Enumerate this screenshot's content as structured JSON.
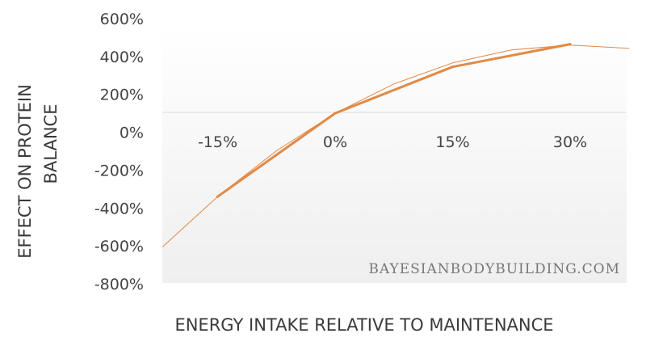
{
  "chart_data": {
    "type": "line",
    "title": "",
    "xlabel": "ENERGY INTAKE RELATIVE TO MAINTENANCE",
    "ylabel_lines": [
      "EFFECT ON PROTEIN",
      "BALANCE"
    ],
    "categories": [
      "-15%",
      "0%",
      "15%",
      "30%"
    ],
    "x": [
      -15,
      0,
      15,
      30
    ],
    "ylim": [
      -800,
      600
    ],
    "yticks": [
      600,
      400,
      200,
      0,
      -200,
      -400,
      -600,
      -800
    ],
    "ytick_labels": [
      "600%",
      "400%",
      "200%",
      "0%",
      "-200%",
      "-400%",
      "-600%",
      "-800%"
    ],
    "grid": false,
    "series": [
      {
        "style": "thick",
        "x": [
          -15,
          0,
          15,
          30
        ],
        "values": [
          -340,
          100,
          345,
          465
        ]
      },
      {
        "style": "thin-trend",
        "x": [
          -22,
          -15,
          -7.5,
          0,
          7.5,
          15,
          22.5,
          30,
          37.5
        ],
        "values": [
          -604,
          -340,
          -98,
          100,
          255,
          366,
          435,
          460,
          443
        ]
      }
    ],
    "line_color": "#e08a47",
    "watermark": "BAYESIANBODYBUILDING.COM"
  }
}
